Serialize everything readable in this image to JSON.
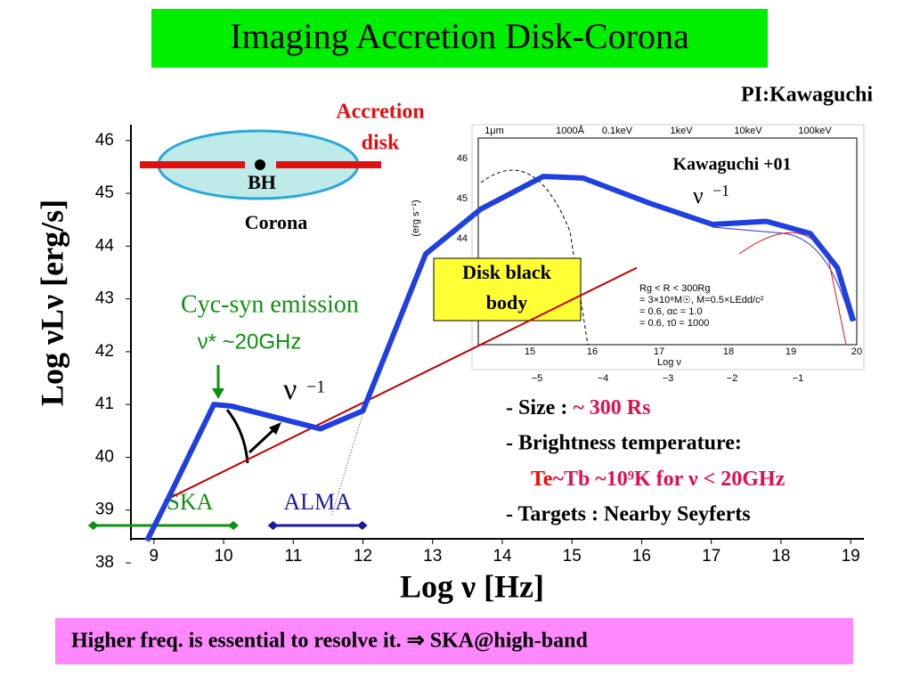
{
  "chart_data": {
    "type": "line",
    "title": "Imaging Accretion Disk-Corona",
    "subtitle": "PI:Kawaguchi",
    "xlabel": "Log ν [Hz]",
    "ylabel": "Log νLν [erg/s]",
    "xlim": [
      8.67,
      19.19
    ],
    "ylim": [
      38,
      46.3
    ],
    "xticks": [
      9,
      10,
      11,
      12,
      13,
      14,
      15,
      16,
      17,
      18,
      19
    ],
    "yticks": [
      38,
      39,
      40,
      41,
      42,
      43,
      44,
      45,
      46
    ],
    "series": [
      {
        "name": "Total",
        "color": "#1f3fe0",
        "x": [
          8.9,
          9.19,
          9.86,
          10.11,
          11.39,
          12.0,
          12.9,
          13.69,
          14.59,
          15.16,
          16.12,
          17.02,
          17.79,
          18.42,
          18.81,
          19.04
        ],
        "values": [
          38.42,
          39.18,
          41.0,
          40.97,
          40.54,
          40.88,
          43.85,
          44.7,
          45.32,
          45.29,
          44.81,
          44.41,
          44.47,
          44.24,
          43.59,
          42.58
        ]
      },
      {
        "name": "Power law",
        "color": "#c00000",
        "x": [
          9.15,
          15.93
        ],
        "values": [
          39.18,
          43.59
        ]
      }
    ],
    "bands": [
      {
        "label": "SKA",
        "color": "#109010",
        "x": [
          8.13,
          10.14
        ]
      },
      {
        "label": "ALMA",
        "color": "#1a1aa0",
        "x": [
          10.71,
          11.99
        ]
      }
    ],
    "annotations": {
      "accretion": "Accretion",
      "disk": "disk",
      "bh": "BH",
      "corona": "Corona",
      "cyc_syn": "Cyc-syn emission",
      "nu_star": "ν* ~20GHz",
      "nu": "ν",
      "minus_one": "−1",
      "disk_bb_1": "Disk black",
      "disk_bb_2": "body"
    },
    "inset": {
      "ref": "Kawaguchi +01",
      "nu": "ν",
      "minus_one": "−1",
      "top_labels": [
        "1μm",
        "1000Å",
        "0.1keV",
        "1keV",
        "10keV",
        "100keV"
      ],
      "xticks": [
        "15",
        "16",
        "17",
        "18",
        "19",
        "20"
      ],
      "bottom_ticks": [
        "−5",
        "−4",
        "−3",
        "−2",
        "−1"
      ],
      "yticks": [
        "46",
        "45",
        "44"
      ],
      "ylabel": "(erg s⁻¹)",
      "xlabel": "Log ν",
      "params": [
        "Rg < R < 300Rg",
        "= 3×10⁸M☉, Ṁ=0.5×LEdd/c²",
        "= 0.6, αc = 1.0",
        "= 0.6, τ0 = 1000"
      ]
    },
    "notes": {
      "size_label": "- Size : ",
      "size_value": "~ 300 Rs",
      "brightness": "- Brightness temperature:",
      "te": "Te",
      "tb": "~Tb ~10⁹K for ν < 20GHz",
      "targets": "- Targets : Nearby Seyferts"
    },
    "footer": "Higher freq. is essential to resolve it. ⇒ SKA@high-band"
  }
}
